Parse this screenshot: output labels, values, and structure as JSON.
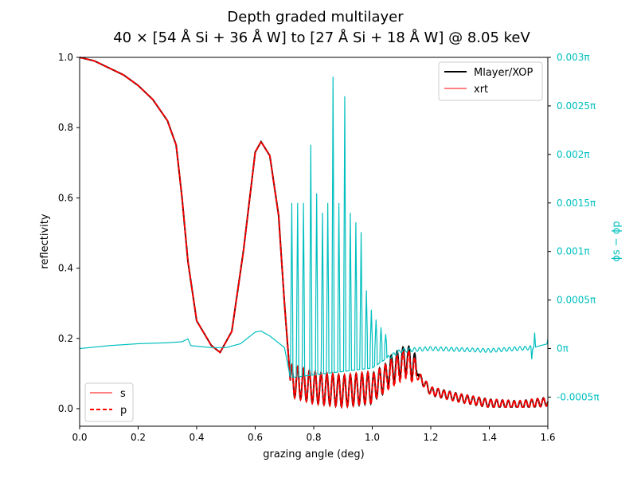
{
  "chart_data": {
    "type": "line",
    "title_line1": "Depth graded multilayer",
    "title_line2": "40 × [54 Å Si + 36 Å W] to [27 Å Si + 18 Å W] @ 8.05 keV",
    "xlabel": "grazing angle (deg)",
    "ylabel": "reflectivity",
    "ylabel_right": "ϕs − ϕp",
    "xlim": [
      0.0,
      1.6
    ],
    "ylim": [
      -0.05,
      1.0
    ],
    "ylim_right": [
      -0.0008,
      0.003
    ],
    "x_ticks": [
      "0.0",
      "0.2",
      "0.4",
      "0.6",
      "0.8",
      "1.0",
      "1.2",
      "1.4",
      "1.6"
    ],
    "y_ticks": [
      "0.0",
      "0.2",
      "0.4",
      "0.6",
      "0.8",
      "1.0"
    ],
    "y_right_ticks": [
      "0.003π",
      "0.0025π",
      "0.002π",
      "0.0015π",
      "0.001π",
      "0.0005π",
      "0π",
      "-0.0005π"
    ],
    "legend_top": [
      "Mlayer/XOP",
      "xrt"
    ],
    "legend_bottom": [
      "s",
      "p"
    ],
    "colors": {
      "mlayer": "#000000",
      "xrt_s": "#ff0000",
      "xrt_p": "#ff0000",
      "phase": "#00bfbf"
    },
    "reflectivity_keypoints": {
      "x": [
        0.0,
        0.05,
        0.1,
        0.15,
        0.2,
        0.25,
        0.3,
        0.33,
        0.35,
        0.37,
        0.4,
        0.45,
        0.48,
        0.52,
        0.56,
        0.6,
        0.62,
        0.65,
        0.68,
        0.7,
        0.72,
        0.8,
        0.9,
        1.0,
        1.05,
        1.1,
        1.12,
        1.15,
        1.2,
        1.3,
        1.4,
        1.5,
        1.6
      ],
      "y": [
        1.0,
        0.99,
        0.97,
        0.95,
        0.92,
        0.88,
        0.82,
        0.75,
        0.6,
        0.42,
        0.25,
        0.18,
        0.16,
        0.22,
        0.45,
        0.73,
        0.76,
        0.72,
        0.55,
        0.3,
        0.08,
        0.06,
        0.05,
        0.06,
        0.09,
        0.12,
        0.13,
        0.1,
        0.05,
        0.03,
        0.015,
        0.01,
        0.02
      ]
    },
    "phase_keypoints": {
      "x": [
        0.0,
        0.1,
        0.2,
        0.3,
        0.35,
        0.37,
        0.38,
        0.45,
        0.5,
        0.55,
        0.6,
        0.62,
        0.65,
        0.7,
        0.72,
        1.0,
        1.05,
        1.1,
        1.15,
        1.2,
        1.4,
        1.55,
        1.6
      ],
      "y": [
        0.0,
        3e-05,
        5e-05,
        6e-05,
        7e-05,
        0.0001,
        3e-05,
        1e-05,
        1e-05,
        5e-05,
        0.00017,
        0.00018,
        0.00013,
        1e-05,
        -0.0003,
        -0.0002,
        -0.0001,
        -2e-05,
        -1e-05,
        0.0,
        -2e-05,
        1e-05,
        5e-05
      ]
    },
    "phase_spikes": {
      "x": [
        0.725,
        0.745,
        0.765,
        0.79,
        0.81,
        0.83,
        0.848,
        0.866,
        0.886,
        0.906,
        0.925,
        0.944,
        0.962,
        0.98,
        0.997,
        1.013,
        1.03,
        1.046
      ],
      "y": [
        0.0015,
        0.0015,
        0.0015,
        0.0021,
        0.0016,
        0.0014,
        0.0015,
        0.0028,
        0.0015,
        0.0026,
        0.0014,
        0.0013,
        0.0012,
        0.0006,
        0.0004,
        0.0003,
        0.00022,
        0.00015
      ]
    },
    "phase_endspikes": {
      "x": [
        1.545,
        1.555,
        1.6
      ],
      "y": [
        -0.00012,
        0.00015,
        5e-05
      ]
    }
  }
}
